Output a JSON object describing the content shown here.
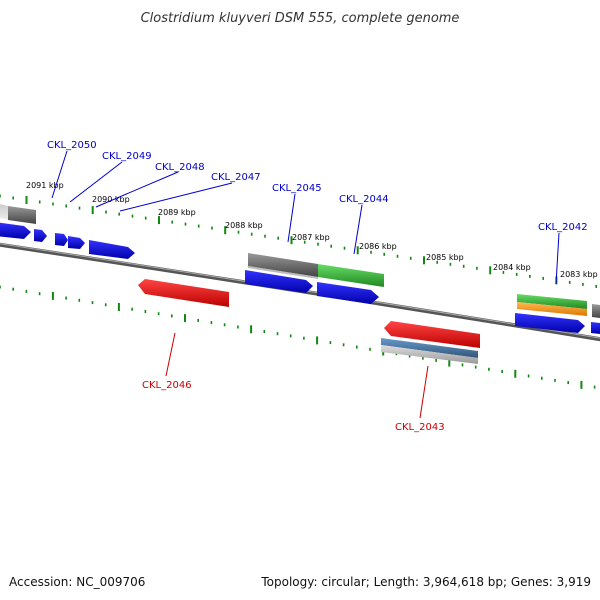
{
  "title": "Clostridium kluyveri DSM 555, complete genome",
  "footer": {
    "accession": "Accession: NC_009706",
    "topology": "Topology: circular; Length: 3,964,618 bp; Genes: 3,919"
  },
  "colors": {
    "plus_cds": "#0000ee",
    "minus_cds": "#ee0000",
    "label_plus": "#0000cc",
    "label_minus": "#cc0000",
    "ticks": "#118811",
    "backbone": "#777777",
    "gray_feature": "#666666",
    "green_feature": "#33bb33",
    "orange_feature": "#ff9922",
    "steelblue_feature": "#4477aa"
  },
  "kbp_labels": [
    "2091 kbp",
    "2090 kbp",
    "2089 kbp",
    "2088 kbp",
    "2087 kbp",
    "2086 kbp",
    "2085 kbp",
    "2084 kbp",
    "2083 kbp"
  ],
  "gene_labels": [
    {
      "id": "CKL_2050",
      "strand": "plus"
    },
    {
      "id": "CKL_2049",
      "strand": "plus"
    },
    {
      "id": "CKL_2048",
      "strand": "plus"
    },
    {
      "id": "CKL_2047",
      "strand": "plus"
    },
    {
      "id": "CKL_2045",
      "strand": "plus"
    },
    {
      "id": "CKL_2044",
      "strand": "plus"
    },
    {
      "id": "CKL_2042",
      "strand": "plus"
    },
    {
      "id": "CKL_2046",
      "strand": "minus"
    },
    {
      "id": "CKL_2043",
      "strand": "minus"
    }
  ]
}
